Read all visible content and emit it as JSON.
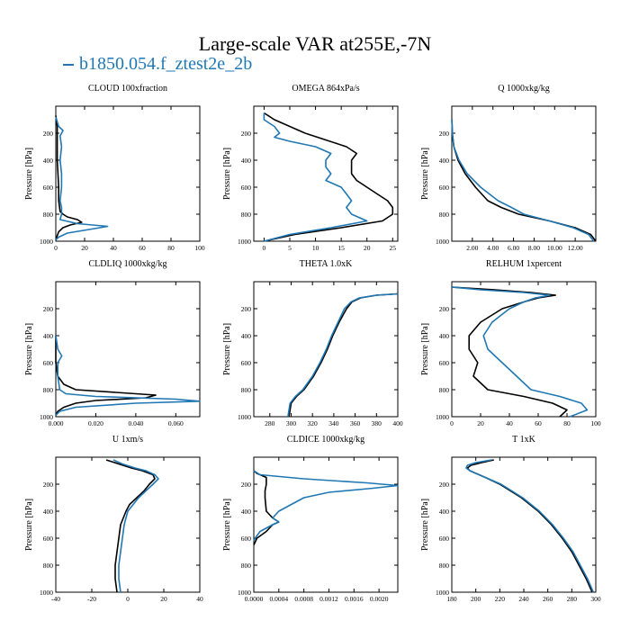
{
  "title": "Large-scale VAR at255E,-7N",
  "legend": {
    "label": "b1850.054.f_ztest2e_2b",
    "color": "#1f78b4"
  },
  "colors": {
    "case": "#000000",
    "model": "#1f78b4"
  },
  "chart_data": [
    {
      "type": "line",
      "title": "CLOUD 100xfraction",
      "xlabel": "",
      "ylabel": "Pressure [hPa]",
      "xlim": [
        0,
        100
      ],
      "ylim": [
        1000,
        0
      ],
      "xticks": [
        0,
        20,
        40,
        60,
        80,
        100
      ],
      "xtick_labels": [
        "0",
        "20",
        "40",
        "60",
        "80",
        "100"
      ],
      "yticks": [
        200,
        400,
        600,
        800,
        1000
      ],
      "ytick_labels": [
        "200",
        "400",
        "600",
        "800",
        "1000"
      ],
      "series": [
        {
          "color": "#000000",
          "y": [
            70,
            150,
            250,
            400,
            600,
            700,
            780,
            800,
            820,
            840,
            860,
            880,
            900,
            930,
            960,
            990
          ],
          "x": [
            0,
            1,
            1,
            1,
            2,
            2,
            3,
            5,
            8,
            15,
            18,
            10,
            5,
            2,
            1,
            0
          ]
        },
        {
          "color": "#1f78b4",
          "name": "b1850.054.f_ztest2e_2b",
          "y": [
            80,
            150,
            180,
            220,
            300,
            400,
            500,
            600,
            700,
            750,
            800,
            840,
            870,
            890,
            910,
            940,
            970,
            990
          ],
          "x": [
            0,
            2,
            5,
            3,
            4,
            3,
            4,
            4,
            3,
            4,
            4,
            3,
            15,
            36,
            25,
            8,
            2,
            0
          ]
        }
      ]
    },
    {
      "type": "line",
      "title": "OMEGA 864xPa/s",
      "xlabel": "",
      "ylabel": "Pressure [hPa]",
      "xlim": [
        -2,
        26
      ],
      "ylim": [
        1000,
        0
      ],
      "xticks": [
        0,
        5,
        10,
        15,
        20,
        25
      ],
      "xtick_labels": [
        "0",
        "5",
        "10",
        "15",
        "20",
        "25"
      ],
      "yticks": [
        200,
        400,
        600,
        800,
        1000
      ],
      "ytick_labels": [
        "200",
        "400",
        "600",
        "800",
        "1000"
      ],
      "series": [
        {
          "color": "#000000",
          "y": [
            50,
            100,
            150,
            200,
            250,
            300,
            350,
            400,
            450,
            500,
            550,
            600,
            650,
            700,
            750,
            800,
            850,
            900,
            950,
            1000
          ],
          "x": [
            0,
            2,
            5,
            8,
            12,
            16,
            18,
            17,
            17,
            17,
            18,
            20,
            22,
            24,
            25,
            25,
            23,
            15,
            6,
            0
          ]
        },
        {
          "color": "#1f78b4",
          "name": "b1850.054.f_ztest2e_2b",
          "y": [
            50,
            100,
            150,
            200,
            230,
            260,
            300,
            350,
            400,
            450,
            500,
            550,
            600,
            650,
            700,
            750,
            800,
            850,
            900,
            950,
            1000
          ],
          "x": [
            0,
            0,
            2,
            3,
            2,
            5,
            10,
            13,
            12,
            12,
            13,
            12,
            15,
            16,
            17,
            16,
            17,
            20,
            13,
            5,
            0
          ]
        }
      ]
    },
    {
      "type": "line",
      "title": "Q 1000xkg/kg",
      "xlabel": "",
      "ylabel": "Pressure [hPa]",
      "xlim": [
        0,
        14
      ],
      "ylim": [
        1000,
        0
      ],
      "xticks": [
        2,
        4,
        6,
        8,
        10,
        12
      ],
      "xtick_labels": [
        "2.00",
        "4.00",
        "6.00",
        "8.00",
        "10.00",
        "12.00"
      ],
      "yticks": [
        200,
        400,
        600,
        800,
        1000
      ],
      "ytick_labels": [
        "200",
        "400",
        "600",
        "800",
        "1000"
      ],
      "series": [
        {
          "color": "#000000",
          "y": [
            100,
            200,
            300,
            400,
            500,
            600,
            700,
            750,
            800,
            850,
            900,
            950,
            1000
          ],
          "x": [
            0.01,
            0.05,
            0.2,
            0.6,
            1.3,
            2.3,
            3.5,
            4.8,
            6.5,
            9.5,
            12,
            13.5,
            14
          ]
        },
        {
          "color": "#1f78b4",
          "name": "b1850.054.f_ztest2e_2b",
          "y": [
            100,
            200,
            300,
            400,
            500,
            600,
            700,
            750,
            800,
            850,
            900,
            950,
            1000
          ],
          "x": [
            0.01,
            0.05,
            0.2,
            0.7,
            1.5,
            2.8,
            4.5,
            5.8,
            7,
            9.5,
            11.8,
            13.3,
            13.8
          ]
        }
      ]
    },
    {
      "type": "line",
      "title": "CLDLIQ 1000xkg/kg",
      "xlabel": "",
      "ylabel": "Pressure [hPa]",
      "xlim": [
        0,
        0.072
      ],
      "ylim": [
        1000,
        0
      ],
      "xticks": [
        0,
        0.02,
        0.04,
        0.06
      ],
      "xtick_labels": [
        "0.000",
        "0.020",
        "0.040",
        "0.060"
      ],
      "yticks": [
        200,
        400,
        600,
        800,
        1000
      ],
      "ytick_labels": [
        "200",
        "400",
        "600",
        "800",
        "1000"
      ],
      "series": [
        {
          "color": "#000000",
          "y": [
            400,
            600,
            700,
            760,
            800,
            820,
            840,
            860,
            880,
            900,
            930,
            960,
            990
          ],
          "x": [
            0,
            0,
            0.001,
            0.004,
            0.01,
            0.03,
            0.05,
            0.045,
            0.02,
            0.01,
            0.004,
            0.001,
            0
          ]
        },
        {
          "color": "#1f78b4",
          "name": "b1850.054.f_ztest2e_2b",
          "y": [
            400,
            500,
            550,
            600,
            700,
            800,
            830,
            850,
            870,
            885,
            900,
            930,
            960,
            990
          ],
          "x": [
            0,
            0.001,
            0.003,
            0.001,
            0.001,
            0.002,
            0.005,
            0.02,
            0.06,
            0.072,
            0.04,
            0.01,
            0.002,
            0
          ]
        }
      ]
    },
    {
      "type": "line",
      "title": "THETA 1.0xK",
      "xlabel": "",
      "ylabel": "Pressure [hPa]",
      "xlim": [
        265,
        400
      ],
      "ylim": [
        1000,
        0
      ],
      "xticks": [
        280,
        300,
        320,
        340,
        360,
        380,
        400
      ],
      "xtick_labels": [
        "280",
        "300",
        "320",
        "340",
        "360",
        "380",
        "400"
      ],
      "yticks": [
        200,
        400,
        600,
        800,
        1000
      ],
      "ytick_labels": [
        "200",
        "400",
        "600",
        "800",
        "1000"
      ],
      "series": [
        {
          "color": "#000000",
          "y": [
            90,
            100,
            120,
            150,
            200,
            300,
            400,
            500,
            600,
            700,
            800,
            850,
            900,
            1000
          ],
          "x": [
            400,
            380,
            365,
            357,
            352,
            345,
            339,
            334,
            328,
            321,
            312,
            305,
            300,
            298
          ]
        },
        {
          "color": "#1f78b4",
          "name": "b1850.054.f_ztest2e_2b",
          "y": [
            90,
            100,
            120,
            150,
            200,
            300,
            400,
            500,
            600,
            700,
            800,
            850,
            900,
            1000
          ],
          "x": [
            400,
            380,
            364,
            356,
            350,
            344,
            338,
            333,
            327,
            320,
            311,
            304,
            299,
            297
          ]
        }
      ]
    },
    {
      "type": "line",
      "title": "RELHUM 1xpercent",
      "xlabel": "",
      "ylabel": "Pressure [hPa]",
      "xlim": [
        0,
        100
      ],
      "ylim": [
        1000,
        0
      ],
      "xticks": [
        0,
        20,
        40,
        60,
        80,
        100
      ],
      "xtick_labels": [
        "0",
        "20",
        "40",
        "60",
        "80",
        "100"
      ],
      "yticks": [
        200,
        400,
        600,
        800,
        1000
      ],
      "ytick_labels": [
        "200",
        "400",
        "600",
        "800",
        "1000"
      ],
      "series": [
        {
          "color": "#000000",
          "y": [
            40,
            60,
            80,
            100,
            120,
            150,
            200,
            300,
            400,
            500,
            600,
            700,
            800,
            850,
            900,
            950,
            1000
          ],
          "x": [
            0,
            30,
            55,
            72,
            60,
            50,
            35,
            20,
            12,
            12,
            18,
            15,
            25,
            50,
            70,
            80,
            75
          ]
        },
        {
          "color": "#1f78b4",
          "name": "b1850.054.f_ztest2e_2b",
          "y": [
            40,
            60,
            80,
            100,
            120,
            150,
            200,
            300,
            400,
            500,
            600,
            700,
            800,
            850,
            900,
            950,
            1000
          ],
          "x": [
            0,
            20,
            50,
            68,
            58,
            50,
            40,
            28,
            22,
            25,
            35,
            45,
            55,
            75,
            90,
            94,
            82
          ]
        }
      ]
    },
    {
      "type": "line",
      "title": "U 1xm/s",
      "xlabel": "",
      "ylabel": "Pressure [hPa]",
      "xlim": [
        -40,
        40
      ],
      "ylim": [
        1000,
        0
      ],
      "xticks": [
        -40,
        -20,
        0,
        20,
        40
      ],
      "xtick_labels": [
        "-40",
        "-20",
        "0",
        "20",
        "40"
      ],
      "yticks": [
        200,
        400,
        600,
        800,
        1000
      ],
      "ytick_labels": [
        "200",
        "400",
        "600",
        "800",
        "1000"
      ],
      "series": [
        {
          "color": "#000000",
          "y": [
            20,
            50,
            80,
            100,
            130,
            160,
            200,
            250,
            300,
            350,
            400,
            500,
            600,
            700,
            800,
            900,
            1000
          ],
          "x": [
            -12,
            -5,
            2,
            8,
            14,
            15,
            12,
            9,
            5,
            1,
            -1,
            -4,
            -5,
            -6,
            -7,
            -7,
            -6
          ]
        },
        {
          "color": "#1f78b4",
          "name": "b1850.054.f_ztest2e_2b",
          "y": [
            20,
            50,
            80,
            100,
            130,
            160,
            200,
            250,
            300,
            350,
            400,
            500,
            600,
            700,
            800,
            900,
            1000
          ],
          "x": [
            -8,
            -3,
            4,
            10,
            15,
            17,
            14,
            10,
            6,
            3,
            0,
            -2,
            -3,
            -4,
            -5,
            -5,
            -4
          ]
        }
      ]
    },
    {
      "type": "line",
      "title": "CLDICE 1000xkg/kg",
      "xlabel": "",
      "ylabel": "Pressure [hPa]",
      "xlim": [
        0,
        0.0023
      ],
      "ylim": [
        1000,
        0
      ],
      "xticks": [
        0,
        0.0004,
        0.0008,
        0.0012,
        0.0016,
        0.002
      ],
      "xtick_labels": [
        "0.0000",
        "0.0004",
        "0.0008",
        "0.0012",
        "0.0016",
        "0.0020"
      ],
      "yticks": [
        200,
        400,
        600,
        800,
        1000
      ],
      "ytick_labels": [
        "200",
        "400",
        "600",
        "800",
        "1000"
      ],
      "series": [
        {
          "color": "#000000",
          "y": [
            100,
            120,
            150,
            200,
            250,
            300,
            400,
            450,
            480,
            500,
            550,
            600,
            650
          ],
          "x": [
            0,
            5e-05,
            0.0002,
            0.0002,
            0.00018,
            0.00018,
            0.0002,
            0.0003,
            0.0004,
            0.0003,
            0.0002,
            5e-05,
            0
          ]
        },
        {
          "color": "#1f78b4",
          "name": "b1850.054.f_ztest2e_2b",
          "y": [
            100,
            130,
            160,
            190,
            210,
            230,
            260,
            300,
            350,
            400,
            450,
            480,
            500,
            550,
            600,
            620
          ],
          "x": [
            0,
            0.0001,
            0.0008,
            0.0018,
            0.0023,
            0.0019,
            0.0012,
            0.0008,
            0.0006,
            0.0004,
            0.0003,
            0.0004,
            0.0003,
            0.0001,
            2e-05,
            0
          ]
        }
      ]
    },
    {
      "type": "line",
      "title": "T 1xK",
      "xlabel": "",
      "ylabel": "Pressure [hPa]",
      "xlim": [
        180,
        300
      ],
      "ylim": [
        1000,
        0
      ],
      "xticks": [
        180,
        200,
        220,
        240,
        260,
        280,
        300
      ],
      "xtick_labels": [
        "180",
        "200",
        "220",
        "240",
        "260",
        "280",
        "300"
      ],
      "yticks": [
        200,
        400,
        600,
        800,
        1000
      ],
      "ytick_labels": [
        "200",
        "400",
        "600",
        "800",
        "1000"
      ],
      "series": [
        {
          "color": "#000000",
          "y": [
            20,
            40,
            60,
            80,
            100,
            150,
            200,
            300,
            400,
            500,
            600,
            700,
            800,
            900,
            1000
          ],
          "x": [
            215,
            205,
            196,
            193,
            195,
            208,
            220,
            238,
            252,
            263,
            272,
            280,
            286,
            292,
            297
          ]
        },
        {
          "color": "#1f78b4",
          "name": "b1850.054.f_ztest2e_2b",
          "y": [
            20,
            40,
            60,
            80,
            100,
            150,
            200,
            300,
            400,
            500,
            600,
            700,
            800,
            900,
            1000
          ],
          "x": [
            213,
            200,
            193,
            192,
            195,
            208,
            221,
            239,
            253,
            264,
            273,
            281,
            287,
            293,
            298
          ]
        }
      ]
    }
  ]
}
